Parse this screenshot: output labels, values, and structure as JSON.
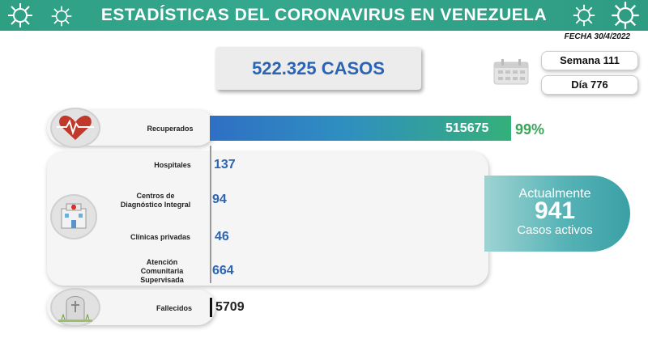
{
  "header": {
    "title": "ESTADÍSTICAS DEL CORONAVIRUS EN VENEZUELA",
    "color": "#2f9f84"
  },
  "fecha": "FECHA 30/4/2022",
  "total_cases": "522.325 CASOS",
  "semana": "Semana 111",
  "dia": "Día 776",
  "recuperados": {
    "label": "Recuperados",
    "value": "515675",
    "percent": "99%",
    "icon": "heart-pulse-icon"
  },
  "hospital_breakdown": {
    "icon": "hospital-icon",
    "rows": [
      {
        "label": "Hospitales",
        "value": "137"
      },
      {
        "label": "Centros de Diagnóstico Integral",
        "value": "94"
      },
      {
        "label": "Clínicas privadas",
        "value": "46"
      },
      {
        "label": "Atención Comunitaria Supervisada",
        "value": "664"
      }
    ]
  },
  "active": {
    "line1": "Actualmente",
    "value": "941",
    "line2": "Casos activos"
  },
  "fallecidos": {
    "label": "Fallecidos",
    "value": "5709",
    "icon": "tombstone-icon"
  }
}
